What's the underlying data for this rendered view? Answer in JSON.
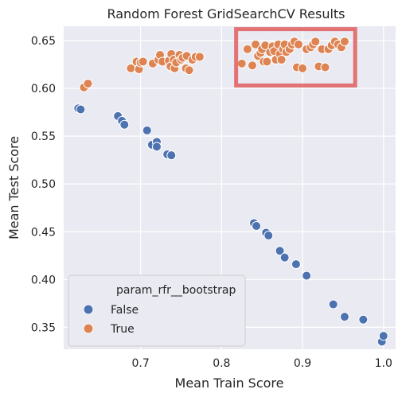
{
  "chart_data": {
    "type": "scatter",
    "title": "Random Forest GridSearchCV Results",
    "xlabel": "Mean Train Score",
    "ylabel": "Mean Test Score",
    "xlim": [
      0.605,
      1.015
    ],
    "ylim": [
      0.327,
      0.665
    ],
    "xticks": [
      0.7,
      0.8,
      0.9,
      1.0
    ],
    "xtick_labels": [
      "0.7",
      "0.8",
      "0.9",
      "1.0"
    ],
    "yticks": [
      0.35,
      0.4,
      0.45,
      0.5,
      0.55,
      0.6,
      0.65
    ],
    "ytick_labels": [
      "0.35",
      "0.40",
      "0.45",
      "0.50",
      "0.55",
      "0.60",
      "0.65"
    ],
    "grid": true,
    "background": "#eaeaf2",
    "legend": {
      "title": "param_rfr__bootstrap",
      "placement": "lower-left",
      "entries": [
        "False",
        "True"
      ]
    },
    "highlight_box": {
      "x_range": [
        0.818,
        0.965
      ],
      "y_range": [
        0.603,
        0.662
      ],
      "color": "#e06666"
    },
    "series": [
      {
        "name": "False",
        "color": "#4c72b0",
        "points": [
          [
            0.623,
            0.579
          ],
          [
            0.626,
            0.578
          ],
          [
            0.672,
            0.571
          ],
          [
            0.677,
            0.566
          ],
          [
            0.68,
            0.562
          ],
          [
            0.708,
            0.556
          ],
          [
            0.714,
            0.541
          ],
          [
            0.72,
            0.544
          ],
          [
            0.72,
            0.539
          ],
          [
            0.733,
            0.531
          ],
          [
            0.738,
            0.53
          ],
          [
            0.84,
            0.459
          ],
          [
            0.843,
            0.456
          ],
          [
            0.855,
            0.449
          ],
          [
            0.858,
            0.446
          ],
          [
            0.872,
            0.43
          ],
          [
            0.878,
            0.423
          ],
          [
            0.892,
            0.416
          ],
          [
            0.905,
            0.404
          ],
          [
            0.938,
            0.374
          ],
          [
            0.952,
            0.361
          ],
          [
            0.975,
            0.358
          ],
          [
            0.998,
            0.335
          ],
          [
            1.0,
            0.341
          ]
        ]
      },
      {
        "name": "True",
        "color": "#dd8452",
        "points": [
          [
            0.63,
            0.601
          ],
          [
            0.635,
            0.605
          ],
          [
            0.688,
            0.621
          ],
          [
            0.695,
            0.628
          ],
          [
            0.698,
            0.62
          ],
          [
            0.7,
            0.627
          ],
          [
            0.703,
            0.628
          ],
          [
            0.715,
            0.626
          ],
          [
            0.722,
            0.63
          ],
          [
            0.724,
            0.635
          ],
          [
            0.727,
            0.628
          ],
          [
            0.735,
            0.629
          ],
          [
            0.737,
            0.623
          ],
          [
            0.738,
            0.636
          ],
          [
            0.741,
            0.63
          ],
          [
            0.742,
            0.621
          ],
          [
            0.744,
            0.627
          ],
          [
            0.748,
            0.635
          ],
          [
            0.75,
            0.63
          ],
          [
            0.752,
            0.632
          ],
          [
            0.756,
            0.621
          ],
          [
            0.757,
            0.634
          ],
          [
            0.76,
            0.619
          ],
          [
            0.764,
            0.63
          ],
          [
            0.768,
            0.633
          ],
          [
            0.773,
            0.633
          ],
          [
            0.825,
            0.626
          ],
          [
            0.832,
            0.641
          ],
          [
            0.838,
            0.624
          ],
          [
            0.842,
            0.646
          ],
          [
            0.845,
            0.634
          ],
          [
            0.848,
            0.637
          ],
          [
            0.85,
            0.641
          ],
          [
            0.852,
            0.628
          ],
          [
            0.854,
            0.645
          ],
          [
            0.856,
            0.628
          ],
          [
            0.86,
            0.638
          ],
          [
            0.863,
            0.644
          ],
          [
            0.865,
            0.639
          ],
          [
            0.867,
            0.63
          ],
          [
            0.87,
            0.646
          ],
          [
            0.872,
            0.636
          ],
          [
            0.874,
            0.63
          ],
          [
            0.876,
            0.641
          ],
          [
            0.878,
            0.646
          ],
          [
            0.88,
            0.638
          ],
          [
            0.884,
            0.641
          ],
          [
            0.887,
            0.646
          ],
          [
            0.89,
            0.649
          ],
          [
            0.893,
            0.622
          ],
          [
            0.895,
            0.646
          ],
          [
            0.9,
            0.621
          ],
          [
            0.905,
            0.641
          ],
          [
            0.91,
            0.643
          ],
          [
            0.913,
            0.646
          ],
          [
            0.916,
            0.649
          ],
          [
            0.92,
            0.623
          ],
          [
            0.924,
            0.641
          ],
          [
            0.928,
            0.622
          ],
          [
            0.932,
            0.641
          ],
          [
            0.936,
            0.645
          ],
          [
            0.94,
            0.649
          ],
          [
            0.944,
            0.646
          ],
          [
            0.948,
            0.643
          ],
          [
            0.952,
            0.649
          ]
        ]
      }
    ]
  }
}
